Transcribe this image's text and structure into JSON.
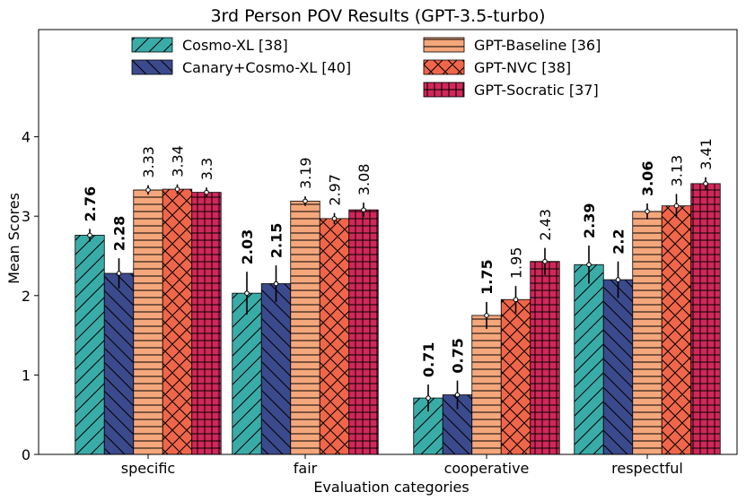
{
  "chart_data": {
    "type": "bar",
    "title": "3rd Person POV Results (GPT-3.5-turbo)",
    "xlabel": "Evaluation categories",
    "ylabel": "Mean Scores",
    "ylim": [
      0,
      5.35
    ],
    "yticks": [
      0,
      1,
      2,
      3,
      4
    ],
    "categories": [
      "specific",
      "fair",
      "cooperative",
      "respectful"
    ],
    "series": [
      {
        "name": "Cosmo-XL [38]",
        "color": "#3aaca8",
        "hatch": "diag-up",
        "values": [
          2.76,
          2.03,
          0.71,
          2.39
        ],
        "errors": [
          0.08,
          0.27,
          0.17,
          0.24
        ],
        "labels": [
          "2.76",
          "2.03",
          "0.71",
          "2.39"
        ],
        "bold": [
          true,
          true,
          true,
          true
        ]
      },
      {
        "name": "Canary+Cosmo-XL [40]",
        "color": "#3b4a8c",
        "hatch": "diag-down",
        "values": [
          2.28,
          2.15,
          0.75,
          2.2
        ],
        "errors": [
          0.19,
          0.23,
          0.18,
          0.23
        ],
        "labels": [
          "2.28",
          "2.15",
          "0.75",
          "2.2"
        ],
        "bold": [
          true,
          true,
          true,
          true
        ]
      },
      {
        "name": "GPT-Baseline [36]",
        "color": "#f5a77c",
        "hatch": "horizontal",
        "values": [
          3.33,
          3.19,
          1.75,
          3.06
        ],
        "errors": [
          0.06,
          0.06,
          0.17,
          0.1
        ],
        "labels": [
          "3.33",
          "3.19",
          "1.75",
          "3.06"
        ],
        "bold": [
          false,
          false,
          true,
          true
        ]
      },
      {
        "name": "GPT-NVC [38]",
        "color": "#f0664a",
        "hatch": "cross",
        "values": [
          3.34,
          2.97,
          1.95,
          3.13
        ],
        "errors": [
          0.06,
          0.07,
          0.17,
          0.15
        ],
        "labels": [
          "3.34",
          "2.97",
          "1.95",
          "3.13"
        ],
        "bold": [
          false,
          false,
          false,
          false
        ]
      },
      {
        "name": "GPT-Socratic [37]",
        "color": "#d2275a",
        "hatch": "grid",
        "values": [
          3.3,
          3.08,
          2.43,
          3.41
        ],
        "errors": [
          0.06,
          0.09,
          0.17,
          0.08
        ],
        "labels": [
          "3.3",
          "3.08",
          "2.43",
          "3.41"
        ],
        "bold": [
          false,
          false,
          false,
          false
        ]
      }
    ],
    "legend": [
      "Cosmo-XL [38]",
      "Canary+Cosmo-XL [40]",
      "GPT-Baseline [36]",
      "GPT-NVC [38]",
      "GPT-Socratic [37]"
    ]
  }
}
